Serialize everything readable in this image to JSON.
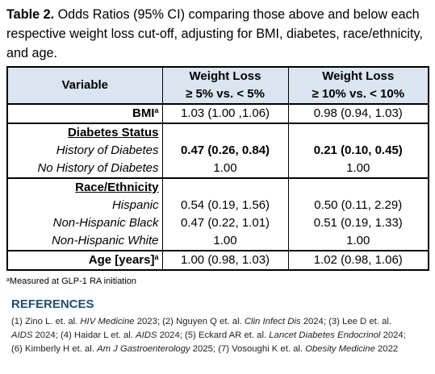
{
  "caption": {
    "label": "Table 2.",
    "text": "Odds Ratios (95% CI) comparing those above and below each respective weight loss cut-off, adjusting for BMI, diabetes, race/ethnicity, and age."
  },
  "table": {
    "header": {
      "variable": "Variable",
      "columns": [
        {
          "title": "Weight Loss",
          "subtitle": "≥ 5% vs. < 5%"
        },
        {
          "title": "Weight Loss",
          "subtitle": "≥ 10% vs. < 10%"
        }
      ]
    },
    "bmi": {
      "label": "BMI",
      "note": "a",
      "values": [
        "1.03 (1.00 ,1.06)",
        "0.98 (0.94, 1.03)"
      ]
    },
    "diabetes": {
      "heading": "Diabetes Status",
      "rows": [
        {
          "label": "History of Diabetes",
          "values": [
            "0.47 (0.26, 0.84)",
            "0.21 (0.10, 0.45)"
          ]
        },
        {
          "label": "No History of Diabetes",
          "values": [
            "1.00",
            "1.00"
          ]
        }
      ]
    },
    "race": {
      "heading": "Race/Ethnicity",
      "rows": [
        {
          "label": "Hispanic",
          "values": [
            "0.54 (0.19, 1.56)",
            "0.50 (0.11, 2.29)"
          ]
        },
        {
          "label": "Non-Hispanic Black",
          "values": [
            "0.47 (0.22, 1.01)",
            "0.51 (0.19, 1.33)"
          ]
        },
        {
          "label": "Non-Hispanic White",
          "values": [
            "1.00",
            "1.00"
          ]
        }
      ]
    },
    "age": {
      "label": "Age [years]",
      "note": "a",
      "values": [
        "1.00 (0.98, 1.03)",
        "1.02 (0.98, 1.06)"
      ]
    }
  },
  "footnote": {
    "note": "a",
    "text": "Measured at GLP-1 RA initiation"
  },
  "references": {
    "title": "REFERENCES",
    "items": [
      {
        "authors": "(1) Zino L. et. al.",
        "journal": "HIV Medicine",
        "year": "2023;"
      },
      {
        "authors": "(2) Nguyen Q et. al.",
        "journal": "Clin Infect Dis",
        "year": "2024;"
      },
      {
        "authors": "(3) Lee D et. al.",
        "journal": "AIDS",
        "year": "2024;"
      },
      {
        "authors": "(4) Haidar L et. al.",
        "journal": "AIDS",
        "year": "2024;"
      },
      {
        "authors": "(5) Eckard AR et. al.",
        "journal": "Lancet Diabetes Endocrinol",
        "year": "2024;"
      },
      {
        "authors": "(6) Kimberly H et. al.",
        "journal": "Am J Gastroenterology",
        "year": "2025;"
      },
      {
        "authors": "(7) Vosoughi K et. al.",
        "journal": "Obesity Medicine",
        "year": "2022"
      }
    ]
  }
}
